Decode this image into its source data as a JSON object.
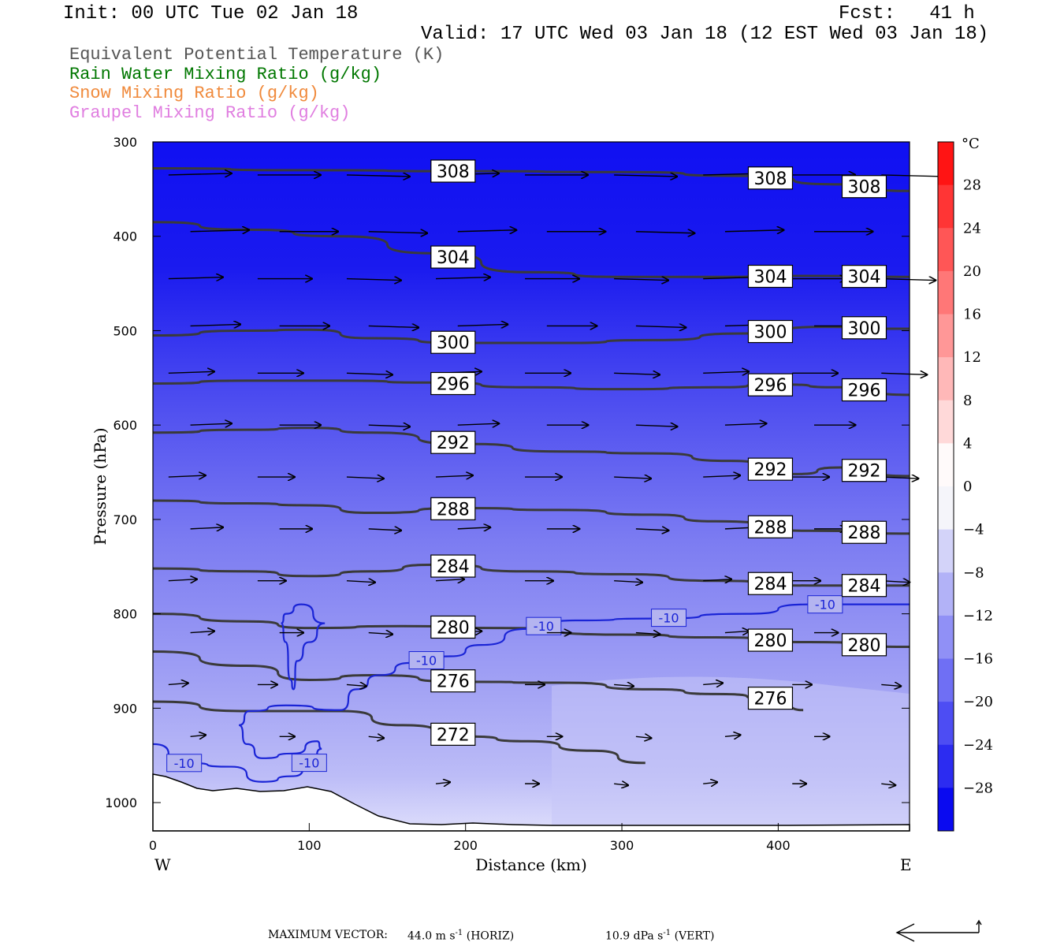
{
  "header": {
    "init": "Init: 00 UTC Tue 02 Jan 18",
    "fcst": "Fcst:   41 h",
    "valid": "Valid: 17 UTC Wed 03 Jan 18 (12 EST Wed 03 Jan 18)"
  },
  "legend": [
    {
      "text": "Equivalent Potential Temperature (K)",
      "color": "#555555"
    },
    {
      "text": "Rain Water Mixing Ratio (g/kg)",
      "color": "#007700"
    },
    {
      "text": "Snow Mixing Ratio (g/kg)",
      "color": "#f08a3c"
    },
    {
      "text": "Graupel Mixing Ratio (g/kg)",
      "color": "#e07ee0"
    }
  ],
  "footer": {
    "label": "MAXIMUM VECTOR:",
    "horiz": "44.0 m s",
    "horiz_unit": "(HORIZ)",
    "vert": "10.9 dPa s",
    "vert_unit": "(VERT)",
    "exp": "-1"
  },
  "chart_data": {
    "type": "cross-section",
    "xlabel": "Distance (km)",
    "ylabel": "Pressure (hPa)",
    "x_ticks": [
      0,
      100,
      200,
      300,
      400
    ],
    "y_ticks": [
      300,
      400,
      500,
      600,
      700,
      800,
      900,
      1000
    ],
    "xlim": [
      0,
      484
    ],
    "ylim": [
      1030,
      300
    ],
    "x_end_labels": {
      "left": "W",
      "right": "E"
    },
    "colorbar": {
      "unit": "°C",
      "tick_labels": [
        "28",
        "24",
        "20",
        "16",
        "12",
        "8",
        "4",
        "0",
        "−4",
        "−8",
        "−12",
        "−16",
        "−20",
        "−24",
        "−28"
      ],
      "tick_values": [
        28,
        24,
        20,
        16,
        12,
        8,
        4,
        0,
        -4,
        -8,
        -12,
        -16,
        -20,
        -24,
        -28
      ],
      "range": [
        -32,
        32
      ]
    },
    "theta_e_contours": [
      {
        "value": 308,
        "points": [
          [
            0,
            328
          ],
          [
            100,
            330
          ],
          [
            200,
            331
          ],
          [
            300,
            332
          ],
          [
            380,
            336
          ],
          [
            440,
            345
          ],
          [
            484,
            352
          ]
        ]
      },
      {
        "value": 304,
        "points": [
          [
            0,
            385
          ],
          [
            60,
            393
          ],
          [
            120,
            400
          ],
          [
            180,
            418
          ],
          [
            240,
            438
          ],
          [
            300,
            443
          ],
          [
            360,
            443
          ],
          [
            420,
            442
          ],
          [
            484,
            443
          ]
        ]
      },
      {
        "value": 300,
        "points": [
          [
            0,
            505
          ],
          [
            60,
            500
          ],
          [
            100,
            499
          ],
          [
            140,
            508
          ],
          [
            200,
            513
          ],
          [
            260,
            513
          ],
          [
            320,
            510
          ],
          [
            380,
            503
          ],
          [
            430,
            496
          ],
          [
            484,
            498
          ]
        ]
      },
      {
        "value": 296,
        "points": [
          [
            0,
            556
          ],
          [
            60,
            553
          ],
          [
            120,
            553
          ],
          [
            180,
            555
          ],
          [
            240,
            560
          ],
          [
            300,
            562
          ],
          [
            360,
            560
          ],
          [
            400,
            557
          ],
          [
            440,
            560
          ],
          [
            484,
            568
          ]
        ]
      },
      {
        "value": 292,
        "points": [
          [
            0,
            608
          ],
          [
            60,
            605
          ],
          [
            100,
            603
          ],
          [
            140,
            608
          ],
          [
            200,
            620
          ],
          [
            260,
            628
          ],
          [
            320,
            630
          ],
          [
            370,
            638
          ],
          [
            410,
            652
          ],
          [
            440,
            645
          ],
          [
            484,
            654
          ]
        ]
      },
      {
        "value": 288,
        "points": [
          [
            0,
            680
          ],
          [
            60,
            683
          ],
          [
            100,
            685
          ],
          [
            140,
            693
          ],
          [
            200,
            688
          ],
          [
            260,
            690
          ],
          [
            320,
            695
          ],
          [
            360,
            702
          ],
          [
            420,
            712
          ],
          [
            484,
            715
          ]
        ]
      },
      {
        "value": 284,
        "points": [
          [
            0,
            752
          ],
          [
            60,
            755
          ],
          [
            100,
            760
          ],
          [
            140,
            755
          ],
          [
            180,
            748
          ],
          [
            240,
            755
          ],
          [
            300,
            758
          ],
          [
            360,
            765
          ],
          [
            420,
            770
          ],
          [
            484,
            770
          ]
        ]
      },
      {
        "value": 280,
        "points": [
          [
            0,
            800
          ],
          [
            60,
            808
          ],
          [
            100,
            815
          ],
          [
            160,
            813
          ],
          [
            220,
            815
          ],
          [
            300,
            822
          ],
          [
            360,
            825
          ],
          [
            420,
            830
          ],
          [
            484,
            835
          ]
        ]
      },
      {
        "value": 276,
        "points": [
          [
            0,
            840
          ],
          [
            60,
            855
          ],
          [
            100,
            870
          ],
          [
            140,
            865
          ],
          [
            200,
            872
          ],
          [
            260,
            873
          ],
          [
            320,
            880
          ],
          [
            360,
            885
          ],
          [
            400,
            890
          ],
          [
            416,
            902
          ]
        ]
      },
      {
        "value": 272,
        "points": [
          [
            0,
            893
          ],
          [
            60,
            903
          ],
          [
            120,
            903
          ],
          [
            160,
            918
          ],
          [
            200,
            930
          ],
          [
            240,
            935
          ],
          [
            280,
            945
          ],
          [
            315,
            958
          ]
        ]
      }
    ],
    "temperature_contours": [
      {
        "value": -10,
        "points": [
          [
            0,
            938
          ],
          [
            20,
            958
          ],
          [
            50,
            962
          ],
          [
            70,
            978
          ],
          [
            90,
            972
          ],
          [
            102,
            955
          ],
          [
            108,
            943
          ],
          [
            105,
            935
          ],
          [
            90,
            948
          ],
          [
            70,
            953
          ],
          [
            60,
            938
          ],
          [
            55,
            918
          ],
          [
            62,
            903
          ],
          [
            85,
            897
          ],
          [
            120,
            902
          ],
          [
            130,
            880
          ],
          [
            145,
            865
          ],
          [
            165,
            852
          ],
          [
            190,
            845
          ],
          [
            210,
            833
          ],
          [
            240,
            816
          ],
          [
            270,
            807
          ],
          [
            320,
            805
          ],
          [
            380,
            800
          ],
          [
            420,
            790
          ],
          [
            484,
            790
          ]
        ]
      },
      {
        "value": -10,
        "points": [
          [
            85,
            800
          ],
          [
            95,
            790
          ],
          [
            110,
            810
          ],
          [
            100,
            830
          ],
          [
            92,
            850
          ],
          [
            90,
            880
          ],
          [
            88,
            870
          ],
          [
            85,
            830
          ],
          [
            82,
            810
          ],
          [
            85,
            800
          ]
        ]
      }
    ]
  }
}
